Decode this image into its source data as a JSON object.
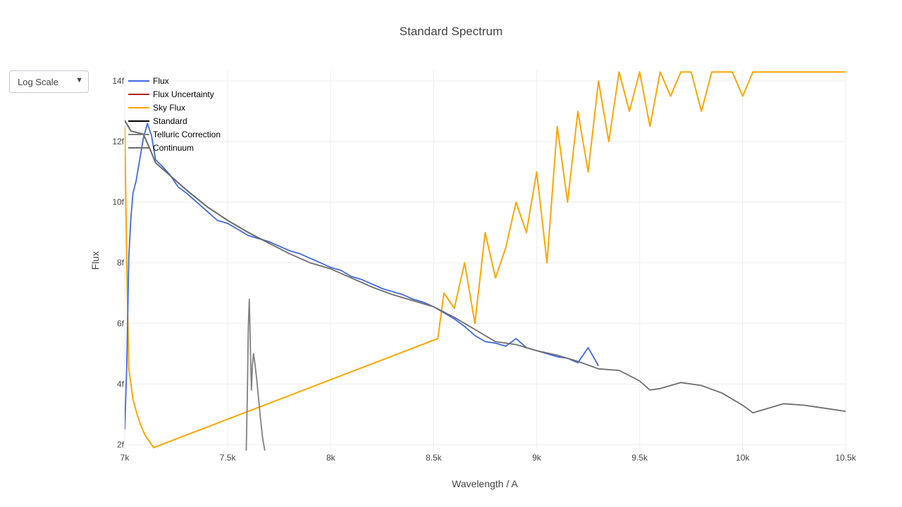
{
  "dropdown": {
    "label": "Log Scale",
    "caret": "▼"
  },
  "chart_data": {
    "type": "line",
    "title": "Standard Spectrum",
    "xlabel": "Wavelength / A",
    "ylabel": "Flux",
    "xlim": [
      7000,
      10500
    ],
    "ylim": [
      1.8e-15,
      1.435e-14
    ],
    "x_ticks": [
      7000,
      7500,
      8000,
      8500,
      9000,
      9500,
      10000,
      10500
    ],
    "x_tick_labels": [
      "7k",
      "7.5k",
      "8k",
      "8.5k",
      "9k",
      "9.5k",
      "10k",
      "10.5k"
    ],
    "y_ticks": [
      2e-15,
      4e-15,
      6e-15,
      8e-15,
      1e-14,
      1.2e-14,
      1.4e-14
    ],
    "y_tick_labels": [
      "2f",
      "4f",
      "6f",
      "8f",
      "10f",
      "12f",
      "14f"
    ],
    "grid": true,
    "legend_position": "top-left",
    "series": [
      {
        "name": "Flux",
        "color": "#4169e1",
        "x": [
          7000,
          7010,
          7020,
          7030,
          7040,
          7055,
          7070,
          7090,
          7110,
          7130,
          7150,
          7180,
          7220,
          7260,
          7300,
          7350,
          7400,
          7450,
          7500,
          7550,
          7600,
          7650,
          7700,
          7750,
          7800,
          7850,
          7900,
          7950,
          8000,
          8050,
          8100,
          8150,
          8200,
          8250,
          8300,
          8350,
          8400,
          8450,
          8500,
          8550,
          8600,
          8650,
          8700,
          8750,
          8800,
          8850,
          8900,
          8950,
          9000,
          9050,
          9100,
          9150,
          9200,
          9250,
          9300
        ],
        "y": [
          2.5e-15,
          4.6e-15,
          8.2e-15,
          9.5e-15,
          1.03e-14,
          1.07e-14,
          1.13e-14,
          1.21e-14,
          1.26e-14,
          1.22e-14,
          1.14e-14,
          1.12e-14,
          1.09e-14,
          1.05e-14,
          1.03e-14,
          1e-14,
          9.7e-15,
          9.4e-15,
          9.3e-15,
          9.1e-15,
          8.9e-15,
          8.8e-15,
          8.7e-15,
          8.55e-15,
          8.4e-15,
          8.3e-15,
          8.15e-15,
          8e-15,
          7.85e-15,
          7.75e-15,
          7.55e-15,
          7.45e-15,
          7.3e-15,
          7.15e-15,
          7.05e-15,
          6.95e-15,
          6.8e-15,
          6.7e-15,
          6.55e-15,
          6.35e-15,
          6.15e-15,
          5.9e-15,
          5.6e-15,
          5.4e-15,
          5.35e-15,
          5.25e-15,
          5.5e-15,
          5.2e-15,
          5.1e-15,
          5e-15,
          4.9e-15,
          4.85e-15,
          4.7e-15,
          5.2e-15,
          4.6e-15
        ]
      },
      {
        "name": "Flux Uncertainty",
        "color": "#b22222",
        "x": [],
        "y": []
      },
      {
        "name": "Sky Flux",
        "color": "#ffa500",
        "x": [
          7000,
          7010,
          7020,
          7040,
          7060,
          7080,
          7100,
          7120,
          7140,
          8520,
          8550,
          8600,
          8650,
          8700,
          8750,
          8800,
          8850,
          8900,
          8950,
          9000,
          9050,
          9100,
          9150,
          9200,
          9250,
          9300,
          9350,
          9400,
          9450,
          9500,
          9550,
          9600,
          9650,
          9700,
          9750,
          9800,
          9850,
          9900,
          9950,
          10000,
          10050,
          10100,
          10150,
          10200,
          10250,
          10300,
          10350,
          10400,
          10450,
          10500
        ],
        "y": [
          1.25e-14,
          8e-15,
          4.5e-15,
          3.5e-15,
          3e-15,
          2.6e-15,
          2.3e-15,
          2.1e-15,
          1.9e-15,
          5.5e-15,
          7e-15,
          6.5e-15,
          8e-15,
          6e-15,
          9e-15,
          7.5e-15,
          8.5e-15,
          1e-14,
          9e-15,
          1.1e-14,
          8e-15,
          1.25e-14,
          1e-14,
          1.3e-14,
          1.1e-14,
          1.4e-14,
          1.2e-14,
          1.43e-14,
          1.3e-14,
          1.43e-14,
          1.25e-14,
          1.43e-14,
          1.35e-14,
          1.43e-14,
          1.43e-14,
          1.3e-14,
          1.43e-14,
          1.43e-14,
          1.43e-14,
          1.35e-14,
          1.43e-14,
          1.43e-14,
          1.43e-14,
          1.43e-14,
          1.43e-14,
          1.43e-14,
          1.43e-14,
          1.43e-14,
          1.43e-14,
          1.43e-14
        ]
      },
      {
        "name": "Standard",
        "color": "#000000",
        "x": [
          7000,
          7030,
          7060,
          7090,
          7120,
          7150,
          7200,
          7300,
          7400,
          7500,
          7600,
          7700
        ],
        "y": [
          1.27e-14,
          1.235e-14,
          1.23e-14,
          1.225e-14,
          1.18e-14,
          1.13e-14,
          1.1e-14,
          1.04e-14,
          9.85e-15,
          9.4e-15,
          9e-15,
          8.65e-15
        ]
      },
      {
        "name": "Telluric Correction",
        "color": "#808080",
        "x": [
          7590,
          7595,
          7600,
          7605,
          7610,
          7615,
          7620,
          7625,
          7630,
          7640,
          7650,
          7660,
          7670,
          7680
        ],
        "y": [
          1.8e-15,
          3.5e-15,
          5.9e-15,
          6.8e-15,
          5.2e-15,
          3.8e-15,
          4.6e-15,
          5e-15,
          4.8e-15,
          4.2e-15,
          3.5e-15,
          2.8e-15,
          2.2e-15,
          1.8e-15
        ]
      },
      {
        "name": "Continuum",
        "color": "#6e6e6e",
        "x": [
          7000,
          7030,
          7060,
          7090,
          7120,
          7150,
          7200,
          7300,
          7400,
          7500,
          7600,
          7700,
          7800,
          7900,
          8000,
          8100,
          8200,
          8300,
          8400,
          8500,
          8600,
          8700,
          8800,
          8900,
          9000,
          9100,
          9200,
          9300,
          9400,
          9500,
          9550,
          9600,
          9700,
          9800,
          9900,
          10000,
          10050,
          10100,
          10200,
          10300,
          10400,
          10500
        ],
        "y": [
          1.27e-14,
          1.235e-14,
          1.23e-14,
          1.225e-14,
          1.18e-14,
          1.13e-14,
          1.1e-14,
          1.04e-14,
          9.85e-15,
          9.4e-15,
          9e-15,
          8.65e-15,
          8.3e-15,
          8e-15,
          7.8e-15,
          7.5e-15,
          7.2e-15,
          6.95e-15,
          6.75e-15,
          6.55e-15,
          6.2e-15,
          5.8e-15,
          5.4e-15,
          5.3e-15,
          5.1e-15,
          4.95e-15,
          4.75e-15,
          4.5e-15,
          4.45e-15,
          4.1e-15,
          3.8e-15,
          3.85e-15,
          4.05e-15,
          3.95e-15,
          3.7e-15,
          3.3e-15,
          3.05e-15,
          3.15e-15,
          3.35e-15,
          3.3e-15,
          3.2e-15,
          3.1e-15
        ]
      }
    ]
  }
}
